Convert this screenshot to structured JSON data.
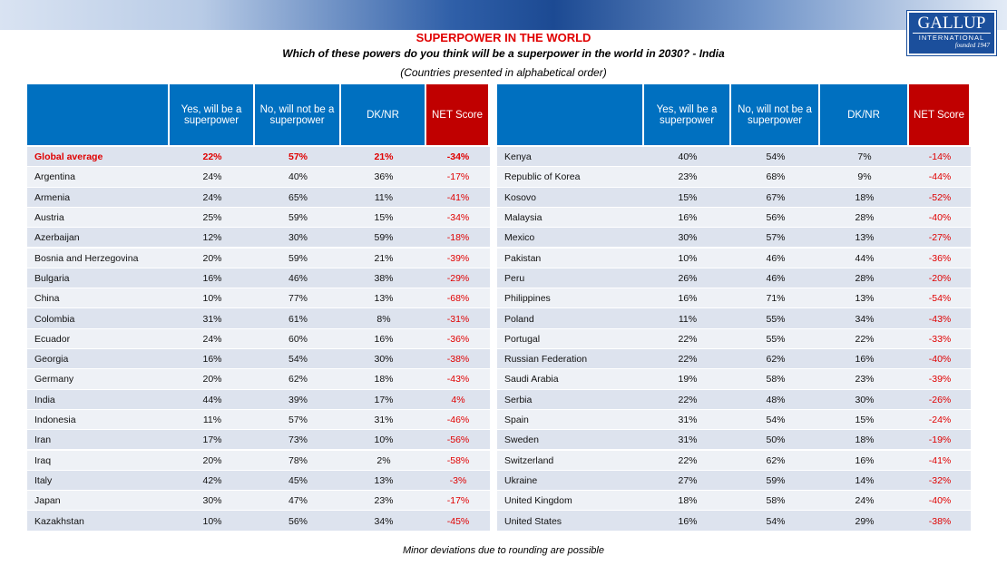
{
  "header": {
    "title": "SUPERPOWER IN THE WORLD",
    "subtitle": "Which of these powers do you think will be a superpower in the world in 2030? - India",
    "note": "(Countries presented in alphabetical order)"
  },
  "logo": {
    "name": "GALLUP",
    "sub": "INTERNATIONAL",
    "founded": "founded 1947"
  },
  "tables": [
    {
      "columns": [
        "Yes, will be a superpower",
        "No, will not be a superpower",
        "DK/NR",
        "NET Score"
      ],
      "rows": [
        [
          "Global average",
          "22%",
          "57%",
          "21%",
          "-34%"
        ],
        [
          "Argentina",
          "24%",
          "40%",
          "36%",
          "-17%"
        ],
        [
          "Armenia",
          "24%",
          "65%",
          "11%",
          "-41%"
        ],
        [
          "Austria",
          "25%",
          "59%",
          "15%",
          "-34%"
        ],
        [
          "Azerbaijan",
          "12%",
          "30%",
          "59%",
          "-18%"
        ],
        [
          "Bosnia and Herzegovina",
          "20%",
          "59%",
          "21%",
          "-39%"
        ],
        [
          "Bulgaria",
          "16%",
          "46%",
          "38%",
          "-29%"
        ],
        [
          "China",
          "10%",
          "77%",
          "13%",
          "-68%"
        ],
        [
          "Colombia",
          "31%",
          "61%",
          "8%",
          "-31%"
        ],
        [
          "Ecuador",
          "24%",
          "60%",
          "16%",
          "-36%"
        ],
        [
          "Georgia",
          "16%",
          "54%",
          "30%",
          "-38%"
        ],
        [
          "Germany",
          "20%",
          "62%",
          "18%",
          "-43%"
        ],
        [
          "India",
          "44%",
          "39%",
          "17%",
          "4%"
        ],
        [
          "Indonesia",
          "11%",
          "57%",
          "31%",
          "-46%"
        ],
        [
          "Iran",
          "17%",
          "73%",
          "10%",
          "-56%"
        ],
        [
          "Iraq",
          "20%",
          "78%",
          "2%",
          "-58%"
        ],
        [
          "Italy",
          "42%",
          "45%",
          "13%",
          "-3%"
        ],
        [
          "Japan",
          "30%",
          "47%",
          "23%",
          "-17%"
        ],
        [
          "Kazakhstan",
          "10%",
          "56%",
          "34%",
          "-45%"
        ]
      ]
    },
    {
      "columns": [
        "Yes, will be a superpower",
        "No, will not be a superpower",
        "DK/NR",
        "NET Score"
      ],
      "rows": [
        [
          "Kenya",
          "40%",
          "54%",
          "7%",
          "-14%"
        ],
        [
          "Republic of Korea",
          "23%",
          "68%",
          "9%",
          "-44%"
        ],
        [
          "Kosovo",
          "15%",
          "67%",
          "18%",
          "-52%"
        ],
        [
          "Malaysia",
          "16%",
          "56%",
          "28%",
          "-40%"
        ],
        [
          "Mexico",
          "30%",
          "57%",
          "13%",
          "-27%"
        ],
        [
          "Pakistan",
          "10%",
          "46%",
          "44%",
          "-36%"
        ],
        [
          "Peru",
          "26%",
          "46%",
          "28%",
          "-20%"
        ],
        [
          "Philippines",
          "16%",
          "71%",
          "13%",
          "-54%"
        ],
        [
          "Poland",
          "11%",
          "55%",
          "34%",
          "-43%"
        ],
        [
          "Portugal",
          "22%",
          "55%",
          "22%",
          "-33%"
        ],
        [
          "Russian Federation",
          "22%",
          "62%",
          "16%",
          "-40%"
        ],
        [
          "Saudi Arabia",
          "19%",
          "58%",
          "23%",
          "-39%"
        ],
        [
          "Serbia",
          "22%",
          "48%",
          "30%",
          "-26%"
        ],
        [
          "Spain",
          "31%",
          "54%",
          "15%",
          "-24%"
        ],
        [
          "Sweden",
          "31%",
          "50%",
          "18%",
          "-19%"
        ],
        [
          "Switzerland",
          "22%",
          "62%",
          "16%",
          "-41%"
        ],
        [
          "Ukraine",
          "27%",
          "59%",
          "14%",
          "-32%"
        ],
        [
          "United Kingdom",
          "18%",
          "58%",
          "24%",
          "-40%"
        ],
        [
          "United States",
          "16%",
          "54%",
          "29%",
          "-38%"
        ]
      ]
    }
  ],
  "footer": "Minor deviations due to rounding are possible"
}
